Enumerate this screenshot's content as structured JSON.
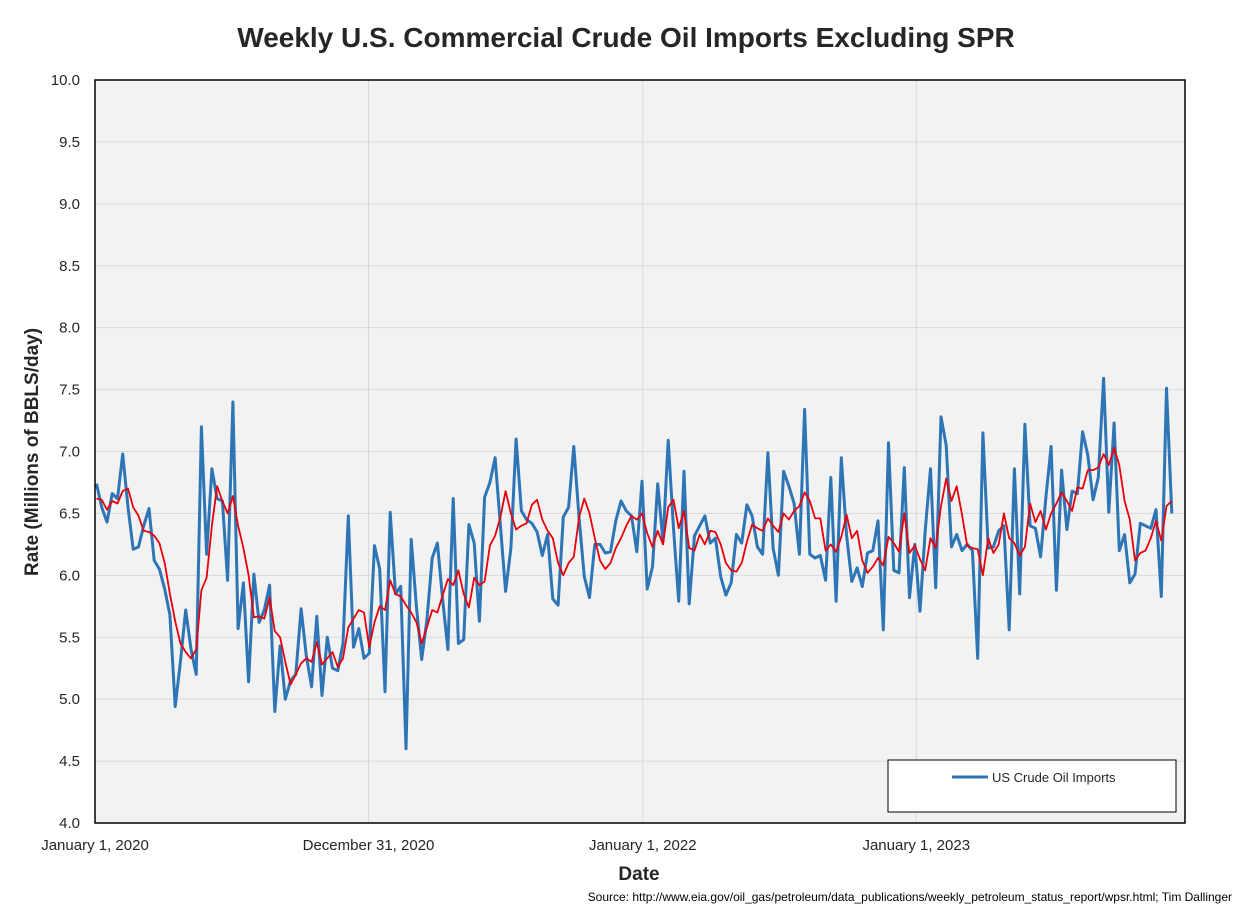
{
  "chart_data": {
    "type": "line",
    "title": "Weekly U.S. Commercial Crude Oil Imports Excluding SPR",
    "xlabel": "Date",
    "ylabel": "Rate (Millions of BBLS/day)",
    "source": "Source: http://www.eia.gov/oil_gas/petroleum/data_publications/weekly_petroleum_status_report/wpsr.html; Tim Dallinger",
    "ylim": [
      4.0,
      10.0
    ],
    "yticks": [
      "4.0",
      "4.5",
      "5.0",
      "5.5",
      "6.0",
      "6.5",
      "7.0",
      "7.5",
      "8.0",
      "8.5",
      "9.0",
      "9.5",
      "10.0"
    ],
    "xticks": [
      "January 1, 2020",
      "December 31, 2020",
      "January 1, 2022",
      "January 1, 2023"
    ],
    "grid": true,
    "legend": {
      "position": "bottom-right",
      "entries": [
        "US Crude Oil Imports"
      ]
    },
    "colors": {
      "imports": "#2e75b6",
      "average": "#e8000b",
      "plot_bg": "#f2f2f2"
    },
    "x_start": "2020-01-03",
    "x_step_days": 7,
    "series": [
      {
        "name": "US Crude Oil Imports",
        "values": [
          6.74,
          6.55,
          6.43,
          6.66,
          6.62,
          6.98,
          6.55,
          6.21,
          6.23,
          6.4,
          6.54,
          6.12,
          6.05,
          5.89,
          5.68,
          4.94,
          5.3,
          5.72,
          5.41,
          5.2,
          7.2,
          6.17,
          6.86,
          6.62,
          6.6,
          5.96,
          7.4,
          5.57,
          5.94,
          5.14,
          6.01,
          5.62,
          5.72,
          5.92,
          4.9,
          5.43,
          5.0,
          5.15,
          5.2,
          5.73,
          5.35,
          5.1,
          5.67,
          5.03,
          5.5,
          5.25,
          5.23,
          5.45,
          6.48,
          5.42,
          5.57,
          5.33,
          5.37,
          6.24,
          6.05,
          5.06,
          6.51,
          5.85,
          5.91,
          4.6,
          6.29,
          5.74,
          5.32,
          5.64,
          6.14,
          6.26,
          5.8,
          5.4,
          6.62,
          5.45,
          5.48,
          6.41,
          6.26,
          5.63,
          6.63,
          6.75,
          6.95,
          6.4,
          5.87,
          6.22,
          7.1,
          6.52,
          6.45,
          6.42,
          6.35,
          6.16,
          6.33,
          5.81,
          5.76,
          6.47,
          6.55,
          7.04,
          6.46,
          5.99,
          5.82,
          6.25,
          6.25,
          6.18,
          6.19,
          6.44,
          6.6,
          6.52,
          6.48,
          6.19,
          6.76,
          5.89,
          6.07,
          6.74,
          6.27,
          7.09,
          6.38,
          5.79,
          6.84,
          5.77,
          6.32,
          6.4,
          6.48,
          6.26,
          6.3,
          5.99,
          5.84,
          5.94,
          6.33,
          6.26,
          6.57,
          6.48,
          6.23,
          6.17,
          6.99,
          6.22,
          6.0,
          6.84,
          6.72,
          6.58,
          6.17,
          7.34,
          6.17,
          6.14,
          6.16,
          5.96,
          6.79,
          5.79,
          6.95,
          6.32,
          5.95,
          6.06,
          5.91,
          6.18,
          6.2,
          6.44,
          5.56,
          7.07,
          6.04,
          6.02,
          6.87,
          5.82,
          6.25,
          5.71,
          6.36,
          6.86,
          5.9,
          7.28,
          7.05,
          6.23,
          6.33,
          6.2,
          6.25,
          6.2,
          5.33,
          7.15,
          6.22,
          6.23,
          6.36,
          6.4,
          5.56,
          6.86,
          5.85,
          7.22,
          6.4,
          6.38,
          6.15,
          6.63,
          7.04,
          5.88,
          6.85,
          6.37,
          6.68,
          6.66,
          7.16,
          6.97,
          6.61,
          6.79,
          7.59,
          6.51,
          7.23,
          6.2,
          6.33,
          5.94,
          6.01,
          6.42,
          6.4,
          6.38,
          6.53,
          5.83,
          7.51,
          6.5
        ]
      },
      {
        "values": [
          6.62,
          6.61,
          6.53,
          6.6,
          6.58,
          6.68,
          6.7,
          6.55,
          6.48,
          6.36,
          6.35,
          6.32,
          6.26,
          6.1,
          5.85,
          5.63,
          5.45,
          5.38,
          5.33,
          5.4,
          5.88,
          5.98,
          6.4,
          6.72,
          6.6,
          6.5,
          6.64,
          6.4,
          6.22,
          6.0,
          5.66,
          5.67,
          5.65,
          5.82,
          5.55,
          5.5,
          5.3,
          5.12,
          5.2,
          5.29,
          5.33,
          5.3,
          5.46,
          5.28,
          5.33,
          5.38,
          5.26,
          5.33,
          5.58,
          5.65,
          5.72,
          5.7,
          5.42,
          5.62,
          5.75,
          5.72,
          5.96,
          5.85,
          5.83,
          5.76,
          5.7,
          5.62,
          5.45,
          5.58,
          5.72,
          5.7,
          5.84,
          5.97,
          5.92,
          6.04,
          5.85,
          5.74,
          5.98,
          5.92,
          5.95,
          6.24,
          6.32,
          6.47,
          6.68,
          6.5,
          6.37,
          6.4,
          6.42,
          6.57,
          6.61,
          6.45,
          6.36,
          6.3,
          6.1,
          6.0,
          6.1,
          6.15,
          6.47,
          6.62,
          6.5,
          6.3,
          6.12,
          6.05,
          6.1,
          6.22,
          6.3,
          6.4,
          6.48,
          6.45,
          6.5,
          6.34,
          6.23,
          6.36,
          6.25,
          6.55,
          6.61,
          6.38,
          6.52,
          6.22,
          6.2,
          6.33,
          6.25,
          6.36,
          6.35,
          6.25,
          6.1,
          6.04,
          6.03,
          6.1,
          6.27,
          6.41,
          6.38,
          6.36,
          6.46,
          6.4,
          6.35,
          6.5,
          6.45,
          6.52,
          6.56,
          6.67,
          6.6,
          6.46,
          6.46,
          6.2,
          6.25,
          6.19,
          6.31,
          6.49,
          6.3,
          6.36,
          6.12,
          6.02,
          6.07,
          6.14,
          6.08,
          6.31,
          6.26,
          6.19,
          6.5,
          6.18,
          6.24,
          6.13,
          6.04,
          6.3,
          6.22,
          6.56,
          6.78,
          6.6,
          6.72,
          6.49,
          6.24,
          6.22,
          6.21,
          6.0,
          6.3,
          6.18,
          6.25,
          6.5,
          6.3,
          6.26,
          6.16,
          6.23,
          6.58,
          6.43,
          6.52,
          6.37,
          6.5,
          6.58,
          6.67,
          6.6,
          6.52,
          6.71,
          6.7,
          6.85,
          6.85,
          6.87,
          6.98,
          6.89,
          7.03,
          6.89,
          6.6,
          6.45,
          6.12,
          6.18,
          6.2,
          6.3,
          6.44,
          6.28,
          6.56,
          6.6
        ]
      }
    ]
  }
}
